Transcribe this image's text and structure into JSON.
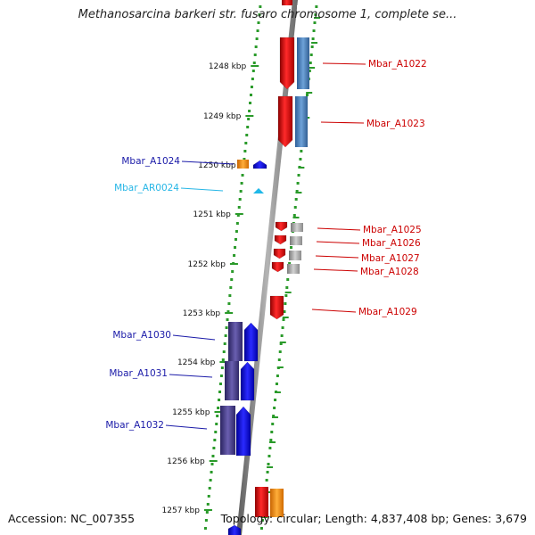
{
  "title": "Methanosarcina barkeri str. fusaro chromosome 1, complete se...",
  "accession": "Accession: NC_007355",
  "stats": "Topology: circular; Length: 4,837,408 bp; Genes: 3,679",
  "scale_labels": [
    "1248 kbp",
    "1249 kbp",
    "1250 kbp",
    "1251 kbp",
    "1252 kbp",
    "1253 kbp",
    "1254 kbp",
    "1255 kbp",
    "1256 kbp",
    "1257 kbp"
  ],
  "colors": {
    "forward_gene": "#e8141b",
    "forward_cog": "#3f7cc0",
    "forward_grey": "#a0a0a0",
    "reverse_gene": "#1414e6",
    "reverse_cog": "#463c8c",
    "orange": "#f58a0a",
    "rna": "#20b8e8",
    "forward_label": "#cc0000",
    "reverse_label": "#1a1aa8",
    "rna_label": "#27b6e6",
    "tick": "#2a9a2a",
    "backbone": "#8c8c8c"
  },
  "forward_genes": [
    {
      "label": "Mbar_A1022",
      "cog": "blue"
    },
    {
      "label": "Mbar_A1023",
      "cog": "blue"
    },
    {
      "label": "Mbar_A1025",
      "cog": "grey"
    },
    {
      "label": "Mbar_A1026",
      "cog": "grey"
    },
    {
      "label": "Mbar_A1027",
      "cog": "grey"
    },
    {
      "label": "Mbar_A1028",
      "cog": "grey"
    },
    {
      "label": "Mbar_A1029",
      "cog": "none"
    }
  ],
  "reverse_genes": [
    {
      "label": "Mbar_A1024",
      "cog": "orange"
    },
    {
      "label": "Mbar_AR0024",
      "cog": "none"
    },
    {
      "label": "Mbar_A1030",
      "cog": "purple"
    },
    {
      "label": "Mbar_A1031",
      "cog": "purple"
    },
    {
      "label": "Mbar_A1032",
      "cog": "purple"
    }
  ]
}
